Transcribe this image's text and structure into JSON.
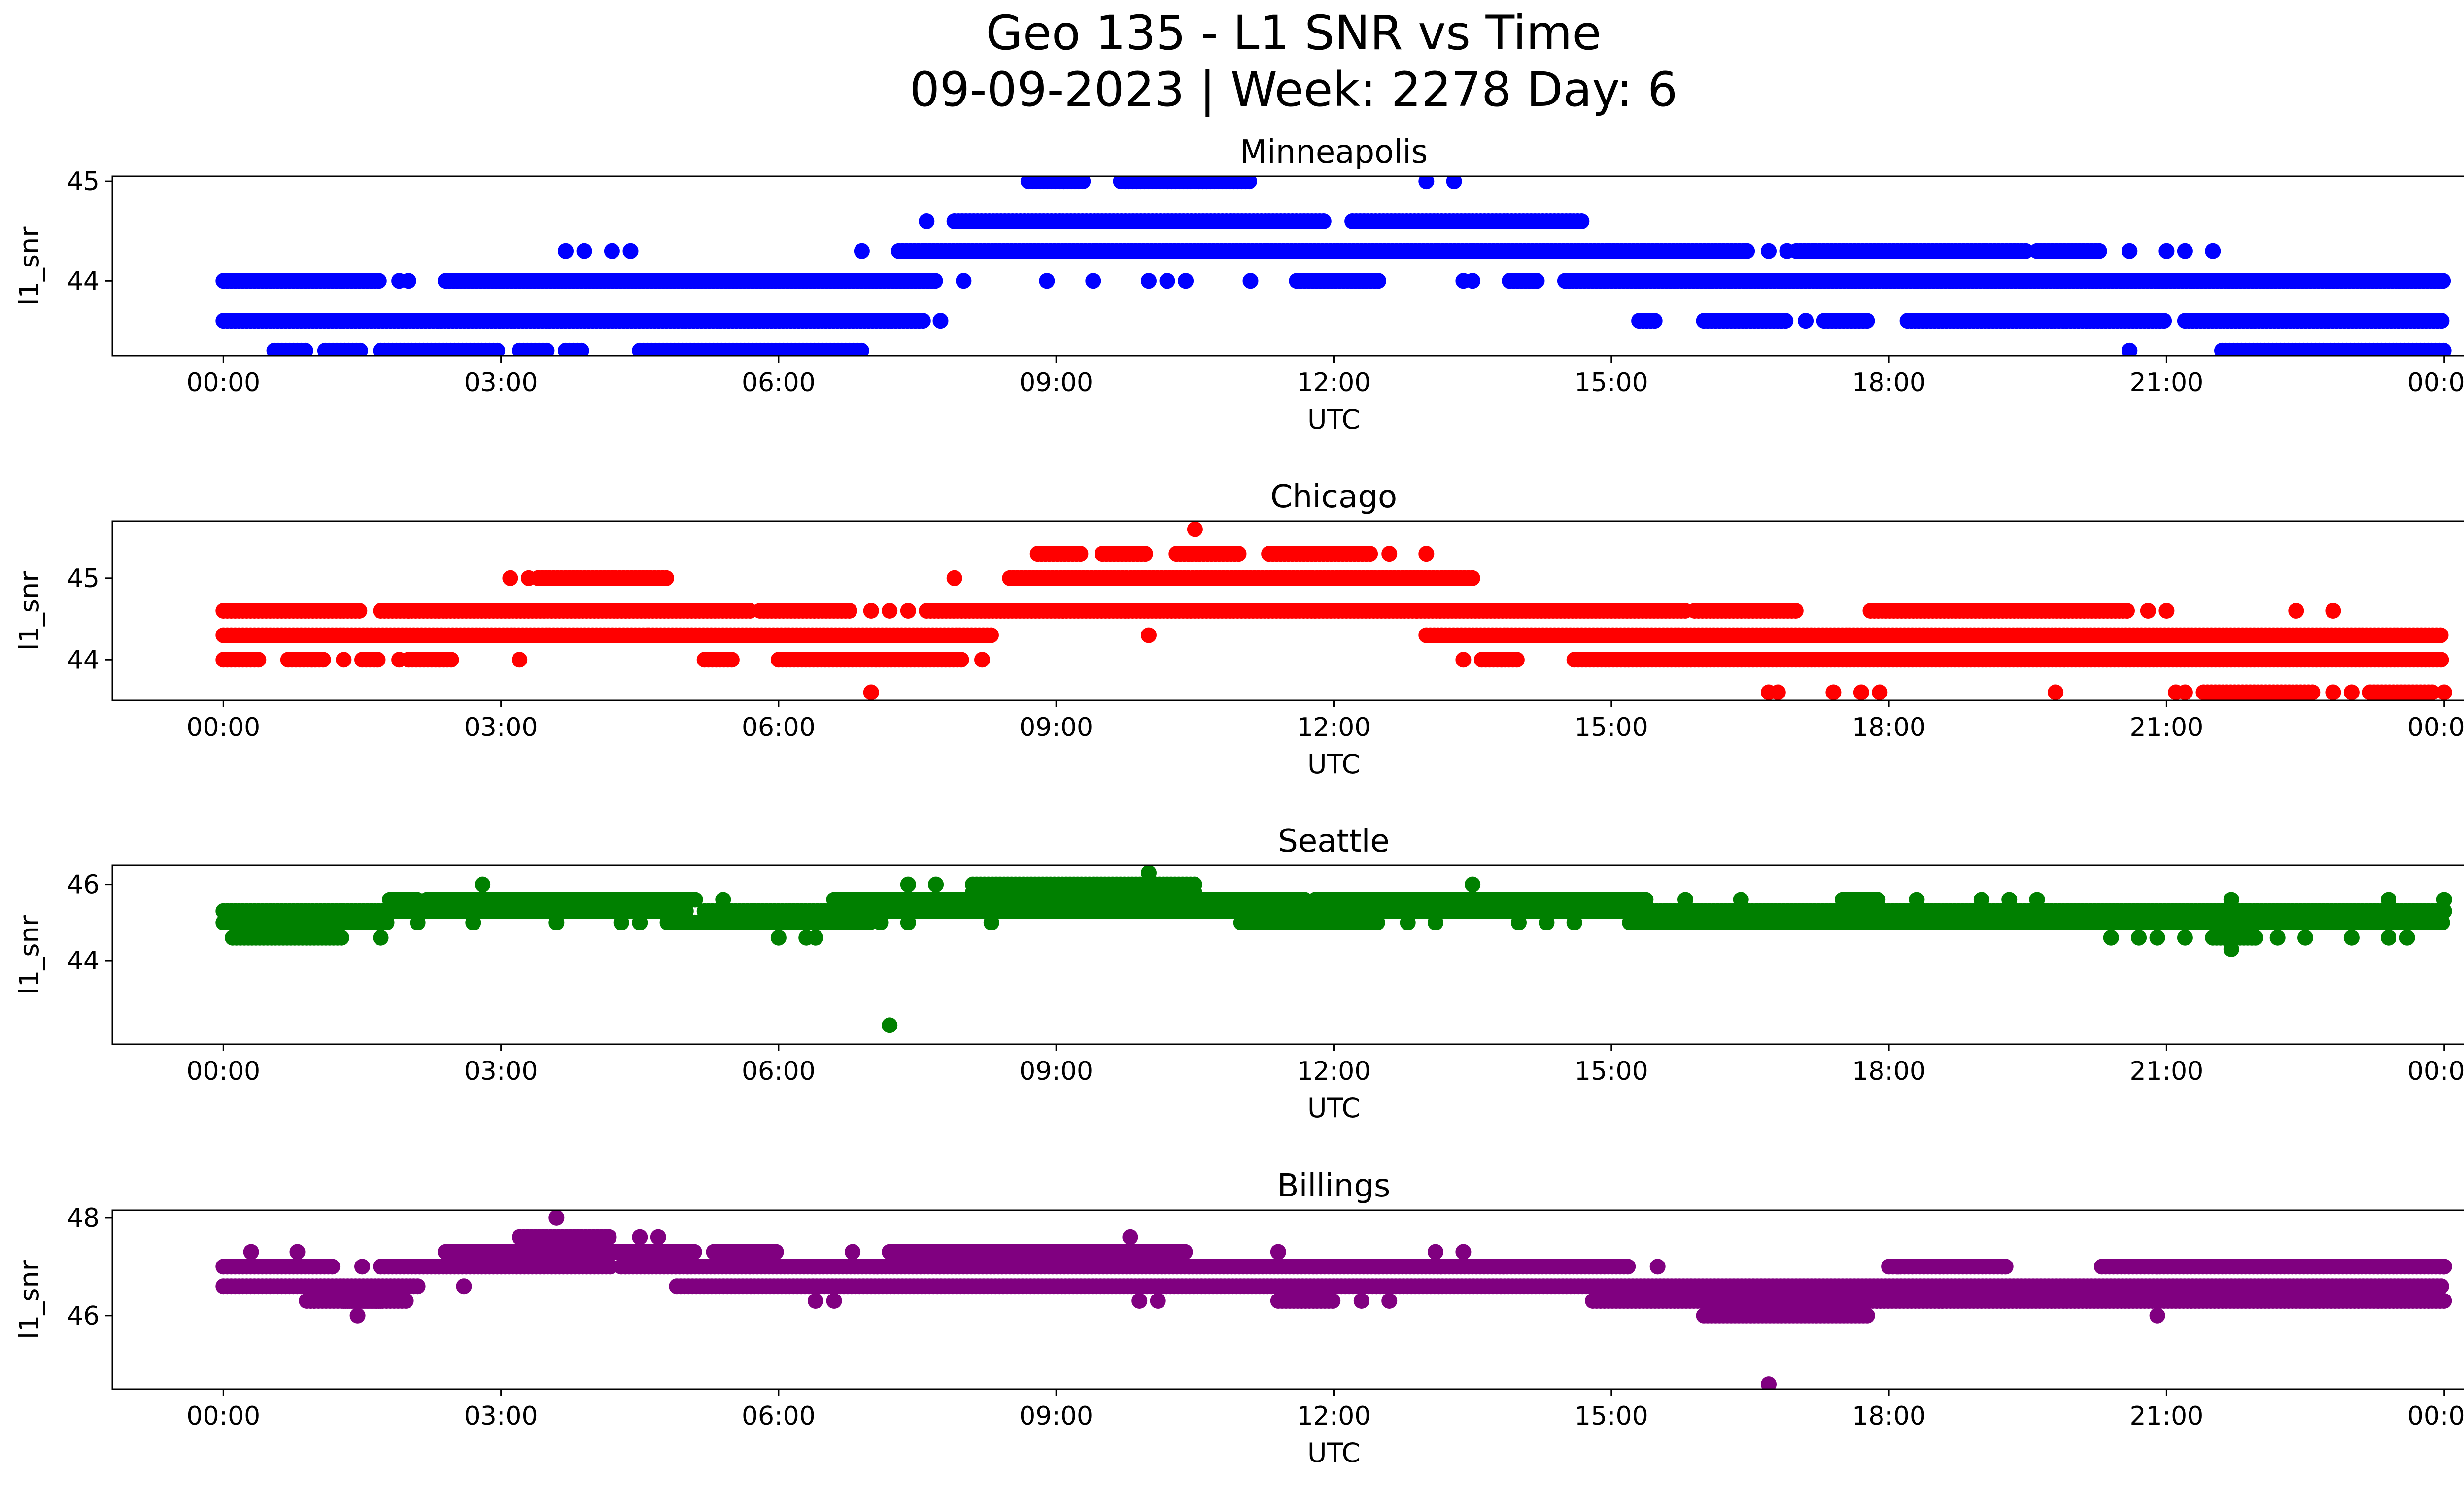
{
  "figure": {
    "title_line1": "Geo 135 - L1 SNR vs Time",
    "title_line2": "09-09-2023 | Week: 2278 Day: 6"
  },
  "chart_data": [
    {
      "type": "scatter",
      "title": "Minneapolis",
      "xlabel": "UTC",
      "ylabel": "l1_snr",
      "color": "#0000ff",
      "x_ticks": [
        "00:00",
        "03:00",
        "06:00",
        "09:00",
        "12:00",
        "15:00",
        "18:00",
        "21:00",
        "00:00"
      ],
      "x_tick_hours": [
        0,
        3,
        6,
        9,
        12,
        15,
        18,
        21,
        24
      ],
      "xlim": [
        -1.2,
        25.2
      ],
      "ylim": [
        43.25,
        45.05
      ],
      "yticks": [
        44,
        45
      ],
      "series": [
        {
          "level": 43.3,
          "ranges": [
            [
              0.55,
              0.9
            ],
            [
              1.1,
              1.5
            ],
            [
              1.7,
              3.0
            ],
            [
              3.2,
              3.5
            ],
            [
              3.7,
              3.9
            ],
            [
              4.5,
              6.9
            ],
            [
              21.6,
              24.0
            ]
          ],
          "points": [
            20.6
          ]
        },
        {
          "level": 43.6,
          "ranges": [
            [
              0.0,
              7.6
            ],
            [
              15.3,
              15.5
            ],
            [
              16.0,
              16.9
            ],
            [
              17.3,
              17.8
            ],
            [
              18.2,
              21.0
            ],
            [
              21.2,
              24.0
            ]
          ],
          "points": [
            7.75,
            17.1
          ]
        },
        {
          "level": 44.0,
          "ranges": [
            [
              0.0,
              1.7
            ],
            [
              2.4,
              7.7
            ],
            [
              11.6,
              12.5
            ],
            [
              13.9,
              14.2
            ],
            [
              14.5,
              16.3
            ],
            [
              16.3,
              24.0
            ]
          ],
          "points": [
            1.9,
            2.0,
            8.0,
            8.9,
            9.4,
            10.0,
            10.2,
            10.4,
            11.1,
            13.4,
            13.5
          ]
        },
        {
          "level": 44.3,
          "ranges": [
            [
              7.3,
              15.5
            ],
            [
              15.5,
              16.5
            ],
            [
              17.0,
              19.5
            ],
            [
              19.6,
              20.3
            ]
          ],
          "points": [
            3.7,
            3.9,
            4.2,
            4.4,
            6.9,
            16.7,
            16.9,
            20.6,
            21.0,
            21.2,
            21.5
          ]
        },
        {
          "level": 44.6,
          "ranges": [
            [
              7.9,
              11.9
            ],
            [
              12.2,
              14.7
            ]
          ],
          "points": [
            7.6
          ]
        },
        {
          "level": 45.0,
          "ranges": [
            [
              8.7,
              9.3
            ],
            [
              9.7,
              11.1
            ]
          ],
          "points": [
            13.0,
            13.3
          ]
        }
      ]
    },
    {
      "type": "scatter",
      "title": "Chicago",
      "xlabel": "UTC",
      "ylabel": "l1_snr",
      "color": "#ff0000",
      "x_ticks": [
        "00:00",
        "03:00",
        "06:00",
        "09:00",
        "12:00",
        "15:00",
        "18:00",
        "21:00",
        "00:00"
      ],
      "x_tick_hours": [
        0,
        3,
        6,
        9,
        12,
        15,
        18,
        21,
        24
      ],
      "xlim": [
        -1.2,
        25.2
      ],
      "ylim": [
        43.5,
        45.7
      ],
      "yticks": [
        44,
        45
      ],
      "series": [
        {
          "level": 43.6,
          "ranges": [
            [
              21.4,
              22.6
            ],
            [
              23.2,
              23.9
            ]
          ],
          "points": [
            7.0,
            16.7,
            16.8,
            17.4,
            17.7,
            17.9,
            19.8,
            21.1,
            21.2,
            22.8,
            23.0,
            24.0
          ]
        },
        {
          "level": 44.0,
          "ranges": [
            [
              0.0,
              0.4
            ],
            [
              0.7,
              1.1
            ],
            [
              1.5,
              1.7
            ],
            [
              2.0,
              2.5
            ],
            [
              5.2,
              5.5
            ],
            [
              6.0,
              8.0
            ],
            [
              13.6,
              14.0
            ],
            [
              14.6,
              24.0
            ]
          ],
          "points": [
            1.3,
            1.9,
            3.2,
            8.2,
            13.4
          ]
        },
        {
          "level": 44.3,
          "ranges": [
            [
              0.0,
              4.6
            ],
            [
              4.6,
              8.3
            ],
            [
              13.0,
              24.0
            ]
          ],
          "points": [
            10.0
          ]
        },
        {
          "level": 44.6,
          "ranges": [
            [
              0.0,
              1.5
            ],
            [
              1.7,
              5.7
            ],
            [
              5.8,
              6.8
            ],
            [
              7.6,
              12.9
            ],
            [
              12.9,
              15.8
            ],
            [
              15.9,
              17.0
            ],
            [
              17.8,
              20.6
            ]
          ],
          "points": [
            2.0,
            7.0,
            7.2,
            7.4,
            20.8,
            21.0,
            22.4,
            22.8
          ]
        },
        {
          "level": 45.0,
          "ranges": [
            [
              3.4,
              4.8
            ],
            [
              8.5,
              13.5
            ]
          ],
          "points": [
            3.1,
            3.3,
            7.9
          ]
        },
        {
          "level": 45.3,
          "ranges": [
            [
              8.8,
              9.3
            ],
            [
              9.5,
              10.0
            ],
            [
              10.3,
              11.0
            ],
            [
              11.3,
              12.4
            ]
          ],
          "points": [
            12.6,
            13.0
          ]
        },
        {
          "level": 45.6,
          "ranges": [],
          "points": [
            10.5
          ]
        }
      ]
    },
    {
      "type": "scatter",
      "title": "Seattle",
      "xlabel": "UTC",
      "ylabel": "l1_snr",
      "color": "#008000",
      "x_ticks": [
        "00:00",
        "03:00",
        "06:00",
        "09:00",
        "12:00",
        "15:00",
        "18:00",
        "21:00",
        "00:00"
      ],
      "x_tick_hours": [
        0,
        3,
        6,
        9,
        12,
        15,
        18,
        21,
        24
      ],
      "xlim": [
        -1.2,
        25.2
      ],
      "ylim": [
        41.8,
        46.5
      ],
      "yticks": [
        44,
        46
      ],
      "series": [
        {
          "level": 42.3,
          "ranges": [],
          "points": [
            7.2
          ]
        },
        {
          "level": 44.3,
          "ranges": [],
          "points": [
            21.7
          ]
        },
        {
          "level": 44.6,
          "ranges": [
            [
              0.1,
              1.3
            ],
            [
              21.5,
              22.0
            ]
          ],
          "points": [
            1.7,
            6.0,
            6.3,
            6.4,
            20.4,
            20.7,
            20.9,
            21.2,
            22.2,
            22.5,
            23.0,
            23.4,
            23.6
          ]
        },
        {
          "level": 45.0,
          "ranges": [
            [
              0.0,
              1.8
            ],
            [
              4.8,
              7.0
            ],
            [
              11.0,
              12.5
            ],
            [
              15.2,
              24.0
            ]
          ],
          "points": [
            2.1,
            2.7,
            3.6,
            4.3,
            4.5,
            7.1,
            7.4,
            8.3,
            12.8,
            13.1,
            14.0,
            14.3,
            14.6
          ]
        },
        {
          "level": 45.3,
          "ranges": [
            [
              0.0,
              5.0
            ],
            [
              5.2,
              8.5
            ],
            [
              8.5,
              11.9
            ],
            [
              12.0,
              15.6
            ],
            [
              15.6,
              24.0
            ]
          ],
          "points": [
            9.1,
            10.4
          ]
        },
        {
          "level": 45.6,
          "ranges": [
            [
              1.8,
              2.1
            ],
            [
              2.2,
              5.1
            ],
            [
              6.6,
              8.3
            ],
            [
              8.2,
              11.7
            ],
            [
              11.8,
              15.4
            ],
            [
              17.5,
              17.9
            ]
          ],
          "points": [
            5.4,
            15.8,
            16.4,
            18.3,
            19.0,
            19.3,
            19.6,
            21.7,
            23.4,
            24.0
          ]
        },
        {
          "level": 45.8,
          "ranges": [
            [
              8.1,
              10.5
            ]
          ],
          "points": []
        },
        {
          "level": 46.0,
          "ranges": [
            [
              8.1,
              10.5
            ]
          ],
          "points": [
            2.8,
            7.4,
            7.7,
            13.5
          ]
        },
        {
          "level": 46.3,
          "ranges": [],
          "points": [
            10.0
          ]
        }
      ]
    },
    {
      "type": "scatter",
      "title": "Billings",
      "xlabel": "UTC",
      "ylabel": "l1_snr",
      "color": "#800080",
      "x_ticks": [
        "00:00",
        "03:00",
        "06:00",
        "09:00",
        "12:00",
        "15:00",
        "18:00",
        "21:00",
        "00:00"
      ],
      "x_tick_hours": [
        0,
        3,
        6,
        9,
        12,
        15,
        18,
        21,
        24
      ],
      "xlim": [
        -1.2,
        25.2
      ],
      "ylim": [
        44.5,
        48.15
      ],
      "yticks": [
        46,
        48
      ],
      "series": [
        {
          "level": 44.6,
          "ranges": [],
          "points": [
            16.7
          ]
        },
        {
          "level": 46.0,
          "ranges": [
            [
              16.0,
              17.8
            ]
          ],
          "points": [
            1.45,
            20.9
          ]
        },
        {
          "level": 46.3,
          "ranges": [
            [
              0.9,
              1.7
            ],
            [
              1.3,
              2.0
            ],
            [
              11.4,
              12.0
            ],
            [
              14.8,
              24.0
            ]
          ],
          "points": [
            6.4,
            6.6,
            9.9,
            10.1,
            12.3,
            12.6
          ]
        },
        {
          "level": 46.6,
          "ranges": [
            [
              0.0,
              2.1
            ],
            [
              4.9,
              24.0
            ]
          ],
          "points": [
            2.6
          ]
        },
        {
          "level": 47.0,
          "ranges": [
            [
              0.0,
              1.2
            ],
            [
              1.7,
              4.2
            ],
            [
              4.3,
              15.2
            ]
          ],
          "points": [
            1.5,
            15.5,
            18.1,
            20.9,
            24.0
          ]
        },
        {
          "level": 47.0,
          "ranges": [
            [
              18.0,
              19.3
            ],
            [
              20.3,
              24.0
            ]
          ],
          "points": []
        },
        {
          "level": 47.3,
          "ranges": [
            [
              2.4,
              5.1
            ],
            [
              5.3,
              6.0
            ],
            [
              7.2,
              10.4
            ]
          ],
          "points": [
            0.3,
            0.8,
            6.8,
            11.4,
            13.1,
            13.4
          ]
        },
        {
          "level": 47.6,
          "ranges": [
            [
              3.2,
              4.2
            ]
          ],
          "points": [
            4.5,
            4.7,
            9.8
          ]
        },
        {
          "level": 48.0,
          "ranges": [],
          "points": [
            3.6
          ]
        }
      ]
    }
  ]
}
